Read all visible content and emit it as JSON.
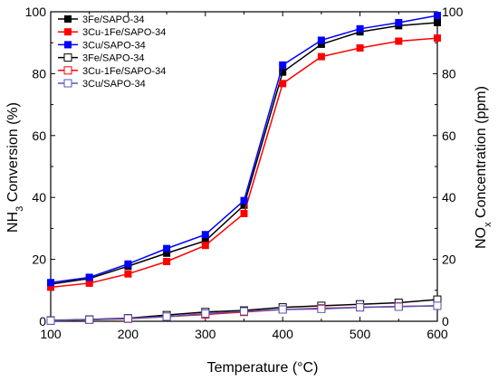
{
  "chart_data": {
    "type": "line",
    "title": "",
    "x": [
      100,
      150,
      200,
      250,
      300,
      350,
      400,
      450,
      500,
      550,
      600
    ],
    "xlim": [
      100,
      600
    ],
    "xticks": [
      100,
      200,
      300,
      400,
      500,
      600
    ],
    "xlabel": "Temperature (°C)",
    "ylim": [
      0,
      100
    ],
    "yticks": [
      0,
      20,
      40,
      60,
      80,
      100
    ],
    "ylabel_left": {
      "pre": "NH",
      "sub": "3",
      "post": " Conversion (%)"
    },
    "ylabel_right": {
      "pre": "NO",
      "sub": "x",
      "post": " Concentration (ppm)"
    },
    "y2lim": [
      0,
      100
    ],
    "grid": false,
    "legend_position": "top-left",
    "series": [
      {
        "name": "3Fe/SAPO-34",
        "axis": "left",
        "color": "#000000",
        "marker": "filled-square",
        "values": [
          12.0,
          13.8,
          17.8,
          22.0,
          26.0,
          37.5,
          80.5,
          89.5,
          93.5,
          95.5,
          96.5
        ]
      },
      {
        "name": "3Cu-1Fe/SAPO-34",
        "axis": "left",
        "color": "#ff0000",
        "marker": "filled-square",
        "values": [
          11.0,
          12.3,
          15.3,
          19.3,
          24.5,
          34.8,
          76.8,
          85.5,
          88.3,
          90.5,
          91.5
        ]
      },
      {
        "name": "3Cu/SAPO-34",
        "axis": "left",
        "color": "#0000ff",
        "marker": "filled-square",
        "values": [
          12.5,
          14.2,
          18.5,
          23.5,
          28.0,
          39.0,
          82.8,
          90.8,
          94.5,
          96.5,
          98.8
        ]
      },
      {
        "name": "3Fe/SAPO-34",
        "axis": "right",
        "color": "#000000",
        "marker": "open-square",
        "values": [
          0.3,
          0.6,
          1.0,
          2.0,
          3.0,
          3.5,
          4.5,
          5.0,
          5.5,
          6.0,
          7.0
        ]
      },
      {
        "name": "3Cu-1Fe/SAPO-34",
        "axis": "right",
        "color": "#ff0000",
        "marker": "open-square",
        "values": [
          0.2,
          0.5,
          0.8,
          1.5,
          2.2,
          3.0,
          3.8,
          4.2,
          4.5,
          4.8,
          5.0
        ]
      },
      {
        "name": "3Cu/SAPO-34",
        "axis": "right",
        "color": "#5555bb",
        "marker": "open-square",
        "values": [
          0.2,
          0.5,
          0.9,
          1.5,
          2.5,
          3.2,
          3.8,
          4.0,
          4.5,
          4.7,
          5.0
        ]
      }
    ]
  }
}
